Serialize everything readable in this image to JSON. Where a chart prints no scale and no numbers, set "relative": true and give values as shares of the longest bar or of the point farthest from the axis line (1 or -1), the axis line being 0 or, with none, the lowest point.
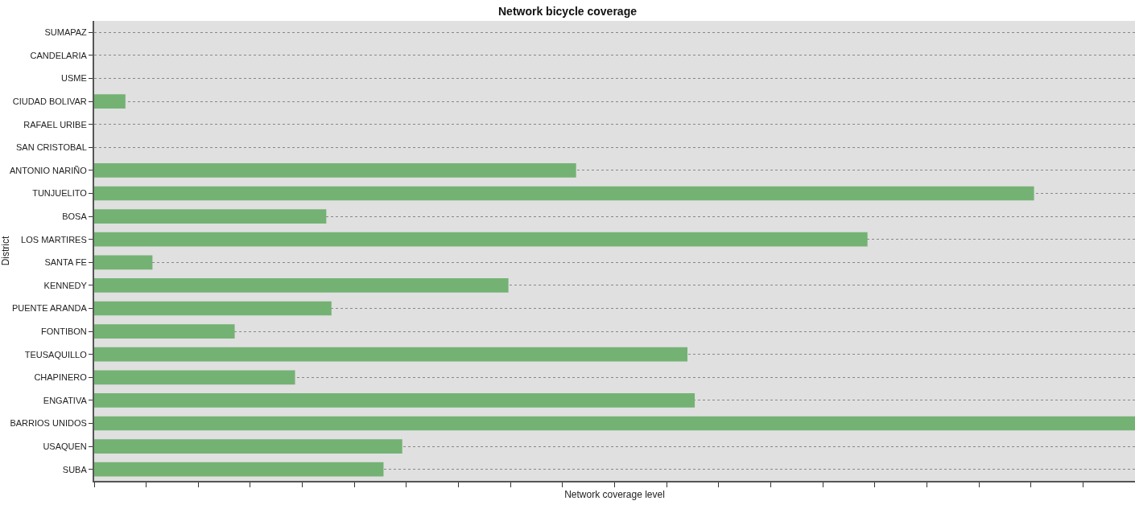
{
  "chart_data": {
    "type": "bar",
    "title": "Network bicycle coverage",
    "xlabel": "Network coverage level",
    "ylabel": "District",
    "orientation": "horizontal",
    "relative": true,
    "grid": "y",
    "color": "#74b274",
    "categories": [
      "SUMAPAZ",
      "CANDELARIA",
      "USME",
      "CIUDAD BOLIVAR",
      "RAFAEL URIBE",
      "SAN CRISTOBAL",
      "ANTONIO NARIÑO",
      "TUNJUELITO",
      "BOSA",
      "LOS MARTIRES",
      "SANTA FE",
      "KENNEDY",
      "PUENTE ARANDA",
      "FONTIBON",
      "TEUSAQUILLO",
      "CHAPINERO",
      "ENGATIVA",
      "BARRIOS UNIDOS",
      "USAQUEN",
      "SUBA"
    ],
    "values": [
      0,
      0,
      0,
      0.03,
      0,
      0,
      0.463,
      0.903,
      0.223,
      0.743,
      0.056,
      0.398,
      0.228,
      0.135,
      0.57,
      0.193,
      0.577,
      1,
      0.296,
      0.278
    ]
  }
}
